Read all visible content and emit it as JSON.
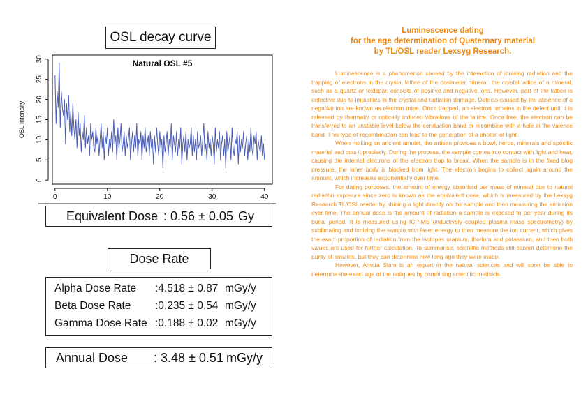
{
  "osl_title": "OSL decay curve",
  "chart_data": {
    "type": "line",
    "title": "Natural OSL #5",
    "ylabel": "OSL intensity",
    "xlabel": "",
    "xlim": [
      -0.5,
      41.5
    ],
    "ylim": [
      -1,
      31
    ],
    "x_ticks": [
      0,
      10,
      20,
      30,
      40
    ],
    "y_ticks": [
      0,
      5,
      10,
      15,
      20,
      25,
      30
    ],
    "grid": false,
    "legend": "none",
    "color": "#4a5db5",
    "x": [
      0.0,
      0.2,
      0.4,
      0.6,
      0.8,
      1.0,
      1.2,
      1.4,
      1.6,
      1.8,
      2.0,
      2.2,
      2.4,
      2.6,
      2.8,
      3.0,
      3.2,
      3.4,
      3.6,
      3.8,
      4.0,
      4.2,
      4.4,
      4.6,
      4.8,
      5.0,
      5.2,
      5.4,
      5.6,
      5.8,
      6.0,
      6.2,
      6.4,
      6.6,
      6.8,
      7.0,
      7.2,
      7.4,
      7.6,
      7.8,
      8.0,
      8.2,
      8.4,
      8.6,
      8.8,
      9.0,
      9.2,
      9.4,
      9.6,
      9.8,
      10.0,
      10.2,
      10.4,
      10.6,
      10.8,
      11.0,
      11.2,
      11.4,
      11.6,
      11.8,
      12.0,
      12.2,
      12.4,
      12.6,
      12.8,
      13.0,
      13.2,
      13.4,
      13.6,
      13.8,
      14.0,
      14.2,
      14.4,
      14.6,
      14.8,
      15.0,
      15.2,
      15.4,
      15.6,
      15.8,
      16.0,
      16.2,
      16.4,
      16.6,
      16.8,
      17.0,
      17.2,
      17.4,
      17.6,
      17.8,
      18.0,
      18.2,
      18.4,
      18.6,
      18.8,
      19.0,
      19.2,
      19.4,
      19.6,
      19.8,
      20.0,
      20.2,
      20.4,
      20.6,
      20.8,
      21.0,
      21.2,
      21.4,
      21.6,
      21.8,
      22.0,
      22.2,
      22.4,
      22.6,
      22.8,
      23.0,
      23.2,
      23.4,
      23.6,
      23.8,
      24.0,
      24.2,
      24.4,
      24.6,
      24.8,
      25.0,
      25.2,
      25.4,
      25.6,
      25.8,
      26.0,
      26.2,
      26.4,
      26.6,
      26.8,
      27.0,
      27.2,
      27.4,
      27.6,
      27.8,
      28.0,
      28.2,
      28.4,
      28.6,
      28.8,
      29.0,
      29.2,
      29.4,
      29.6,
      29.8,
      30.0,
      30.2,
      30.4,
      30.6,
      30.8,
      31.0,
      31.2,
      31.4,
      31.6,
      31.8,
      32.0,
      32.2,
      32.4,
      32.6,
      32.8,
      33.0,
      33.2,
      33.4,
      33.6,
      33.8,
      34.0,
      34.2,
      34.4,
      34.6,
      34.8,
      35.0,
      35.2,
      35.4,
      35.6,
      35.8,
      36.0,
      36.2,
      36.4,
      36.6,
      36.8,
      37.0,
      37.2,
      37.4,
      37.6,
      37.8,
      38.0,
      38.2,
      38.4,
      38.6,
      38.8,
      39.0,
      39.2,
      39.4,
      39.6,
      39.8,
      40.0
    ],
    "y": [
      26,
      14,
      22,
      18,
      29,
      13,
      22,
      18,
      16,
      20,
      9,
      19,
      15,
      21,
      12,
      17,
      11,
      19,
      13,
      10,
      15,
      8,
      17,
      11,
      14,
      7,
      12,
      10,
      16,
      8,
      13,
      9,
      11,
      6,
      14,
      10,
      12,
      8,
      7,
      13,
      9,
      11,
      6,
      10,
      14,
      8,
      12,
      5,
      11,
      9,
      13,
      6,
      10,
      8,
      12,
      7,
      15,
      9,
      11,
      5,
      13,
      8,
      10,
      14,
      7,
      9,
      12,
      6,
      11,
      8,
      10,
      13,
      5,
      9,
      12,
      7,
      11,
      8,
      14,
      6,
      10,
      9,
      12,
      5,
      11,
      8,
      13,
      7,
      9,
      11,
      6,
      12,
      8,
      10,
      4,
      11,
      7,
      13,
      9,
      6,
      12,
      8,
      10,
      3,
      11,
      7,
      9,
      12,
      6,
      10,
      8,
      14,
      5,
      11,
      9,
      7,
      12,
      6,
      10,
      8,
      13,
      4,
      9,
      11,
      7,
      12,
      5,
      10,
      8,
      9,
      13,
      6,
      11,
      7,
      10,
      5,
      12,
      8,
      9,
      11,
      6,
      10,
      14,
      7,
      9,
      5,
      12,
      8,
      10,
      6,
      11,
      9,
      4,
      13,
      7,
      10,
      8,
      12,
      5,
      9,
      11,
      6,
      10,
      3,
      12,
      7,
      9,
      11,
      5,
      13,
      8,
      6,
      10,
      9,
      12,
      4,
      11,
      7,
      10,
      8,
      12,
      6,
      9,
      11,
      5,
      10,
      7,
      13,
      8,
      6,
      11,
      9,
      12,
      5,
      10,
      8,
      7,
      11,
      6,
      9,
      5
    ]
  },
  "equivalent_dose": {
    "label": "Equivalent Dose",
    "value": ": 0.56 ± 0.05",
    "unit": "Gy"
  },
  "dose_rate": {
    "title": "Dose Rate",
    "rows": [
      {
        "label": "Alpha Dose Rate",
        "value": ":4.518 ± 0.87",
        "unit": "mGy/y"
      },
      {
        "label": "Beta Dose Rate",
        "value": ":0.235 ± 0.54",
        "unit": "mGy/y"
      },
      {
        "label": "Gamma Dose Rate",
        "value": ":0.188 ± 0.02",
        "unit": "mGy/y"
      }
    ]
  },
  "annual_dose": {
    "label": "Annual Dose",
    "value": ": 3.48 ± 0.51",
    "unit": "mGy/y"
  },
  "heading": [
    "Luminescence dating",
    "for the age determination of Quaternary material",
    "by TL/OSL reader Lexsyg Research."
  ],
  "paragraphs": [
    "Luminescence is a phenomenon caused by the interaction of ionising radiation and the trapping of electrons in the crystal lattice of the dosimeter mineral. the crystal lattice of a mineral, such as a quartz or feldspar, consists of positive and negative ions. However, part of the lattice is defective due to impurities in the crystal and radiation damage. Defects caused by the absence of a negative ion are known as electron traps. Once trapped, an electron remains in the defect until it is released by thermally or optically induced vibrations of the lattice. Once free, the electron can be transferred to an unstable level below the conduction band or recombine with a hole in the valence band. This type of recombination can lead to the generation of a photon of light.",
    "When making an ancient amulet, the artisan provides a bowl, herbs, minerals and specific material and cuts it precisely. During the process, the sample comes into contact with light and heat, causing the internal electrons of the electron trap to break. When the sample is in the fixed blog pressure, the inner body is blocked from light. The electron begins to collect again around the amount, which increases exponentially over time.",
    "For dating purposes, the amount of energy absorbed per mass of mineral due to natural radiation exposure since zero is known as the equivalent dose, which is measured by the Lexsyg Research TL/OSL reader by shining a light directly on the sample and then measuring the emission over time. The annual dose is the amount of radiation a sample is exposed to per year during its burial period. It is measured using ICP-MS (inductively coupled plasma mass spectrometry) by sublimating and ionizing the sample with laser energy to then measure the ion current, which gives the exact proportion of radiation from the isotopes uranium, thorium and potassium, and then both values are used for further calculation. To summarise, scientific methods still cannot determine the purity of amulets, but they can determine how long ago they were made.",
    "However, Amata Siam is an expert in the natural sciences and will soon be able to determine the exact age of the antiques by combining scientific methods."
  ]
}
